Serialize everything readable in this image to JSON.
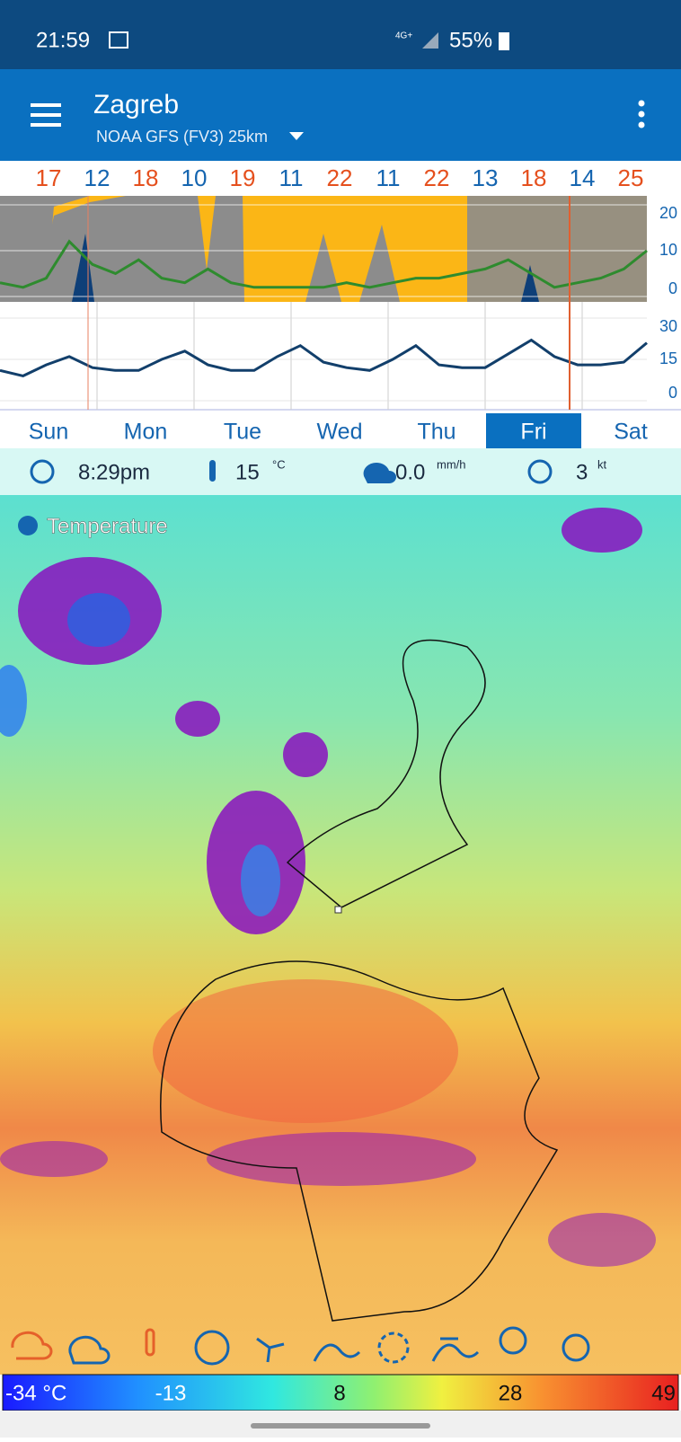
{
  "status_bar": {
    "time": "21:59",
    "network": "4G+",
    "battery": "55%"
  },
  "header": {
    "title": "Zagreb",
    "subtitle": "NOAA GFS (FV3) 25km"
  },
  "daily_temps": {
    "values": [
      17,
      12,
      18,
      10,
      19,
      11,
      22,
      11,
      22,
      13,
      18,
      14,
      25
    ],
    "high_color": "#e5501e",
    "low_color": "#1565b0"
  },
  "forecast": {
    "xlim": [
      0,
      168
    ],
    "x": [
      0,
      6,
      12,
      18,
      24,
      30,
      36,
      42,
      48,
      54,
      60,
      66,
      72,
      78,
      84,
      90,
      96,
      102,
      108,
      114,
      120,
      126,
      132,
      138,
      144,
      150,
      156,
      162,
      168
    ],
    "wind": {
      "color": "#2e8b2e",
      "ylim": [
        0,
        20
      ],
      "yticks": [
        0,
        10,
        20
      ],
      "values": [
        3,
        2,
        4,
        12,
        7,
        5,
        8,
        4,
        3,
        6,
        3,
        2,
        2,
        2,
        2,
        3,
        2,
        3,
        4,
        4,
        5,
        6,
        8,
        5,
        2,
        3,
        4,
        6,
        10
      ]
    },
    "temperature": {
      "color": "#123f6b",
      "ylim": [
        0,
        30
      ],
      "yticks": [
        0,
        15,
        30
      ],
      "values": [
        11,
        9,
        13,
        16,
        12,
        11,
        11,
        15,
        18,
        13,
        11,
        11,
        16,
        20,
        14,
        12,
        11,
        15,
        20,
        13,
        12,
        12,
        17,
        22,
        16,
        13,
        13,
        14,
        21
      ]
    }
  },
  "days": {
    "labels": [
      "Sun",
      "Mon",
      "Tue",
      "Wed",
      "Thu",
      "Fri",
      "Sat"
    ],
    "selected_index": 5
  },
  "info": {
    "time": "8:29pm",
    "temperature": "15",
    "temperature_unit": "°C",
    "rain": "0.0",
    "rain_unit": "mm/h",
    "wind": "3",
    "wind_unit": "kt"
  },
  "map": {
    "layer": "Temperature"
  },
  "legend": {
    "labels": [
      "-34 °C",
      "-13",
      "8",
      "28",
      "49"
    ]
  }
}
